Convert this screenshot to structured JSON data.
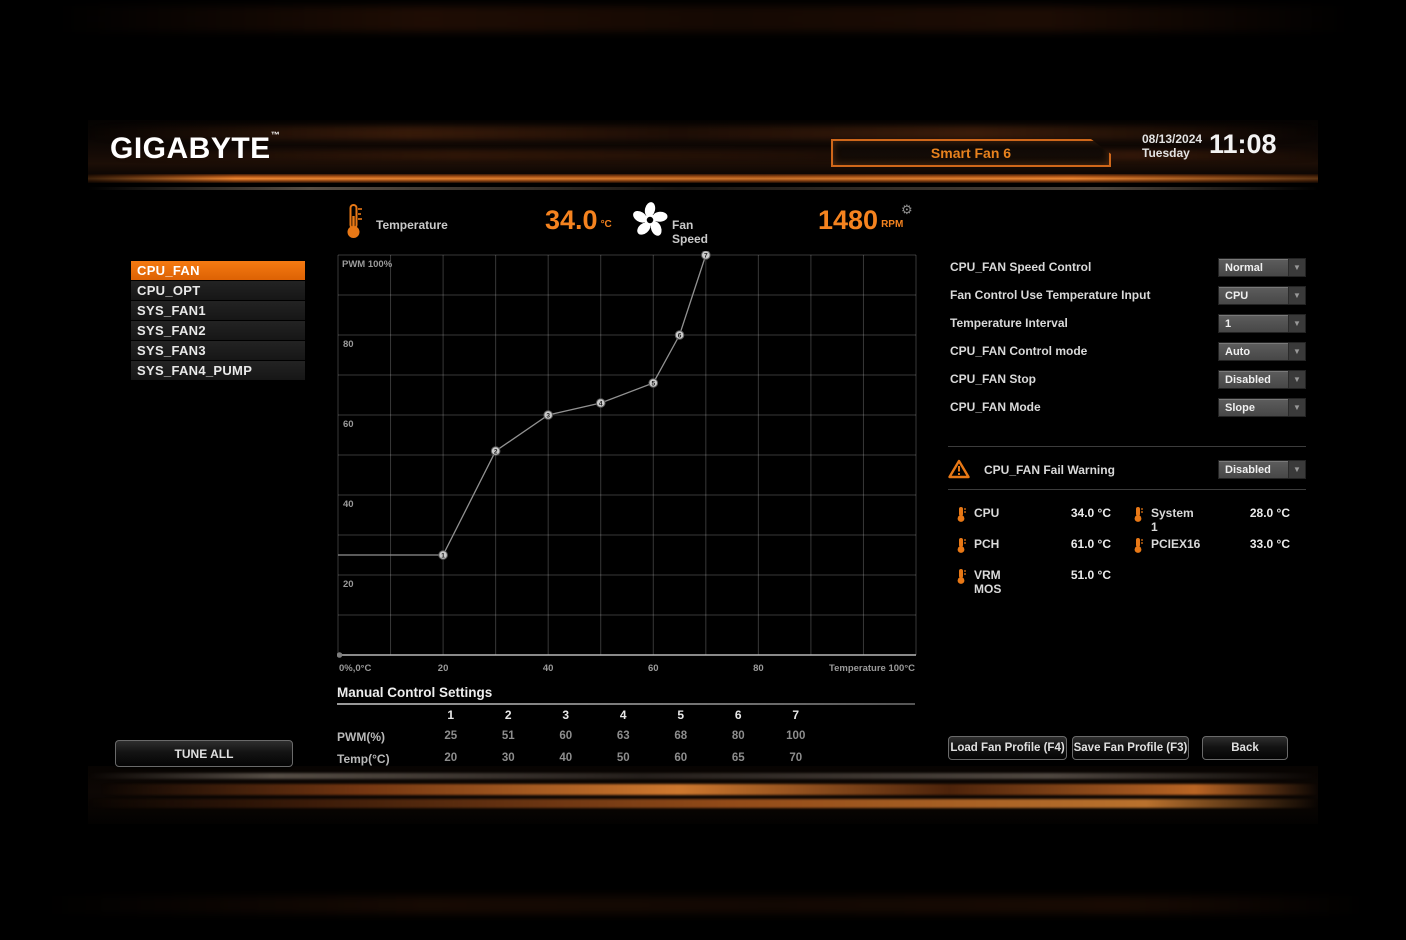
{
  "header": {
    "logo": "GIGABYTE",
    "logo_tm": "™",
    "tab": "Smart Fan 6",
    "date": "08/13/2024",
    "day": "Tuesday",
    "time": "11:08"
  },
  "status_bar": {
    "temperature_label": "Temperature",
    "temperature_value": "34.0",
    "temperature_unit": "°C",
    "fan_speed_label": "Fan Speed",
    "fan_speed_value": "1480",
    "fan_speed_unit": "RPM"
  },
  "fan_list": {
    "items": [
      {
        "label": "CPU_FAN",
        "selected": true
      },
      {
        "label": "CPU_OPT",
        "selected": false
      },
      {
        "label": "SYS_FAN1",
        "selected": false
      },
      {
        "label": "SYS_FAN2",
        "selected": false
      },
      {
        "label": "SYS_FAN3",
        "selected": false
      },
      {
        "label": "SYS_FAN4_PUMP",
        "selected": false
      }
    ]
  },
  "chart_data": {
    "type": "line",
    "title": "CPU_FAN curve",
    "xlabel": "Temperature 100°C",
    "ylabel": "PWM 100%",
    "origin_label": "0%,0°C",
    "x": [
      20,
      30,
      40,
      50,
      60,
      65,
      70
    ],
    "y": [
      25,
      51,
      60,
      63,
      68,
      80,
      100
    ],
    "point_labels": [
      "1",
      "2",
      "3",
      "4",
      "5",
      "6",
      "7"
    ],
    "flat_start_x": 0,
    "xlim": [
      0,
      110
    ],
    "ylim": [
      0,
      100
    ],
    "x_ticks": [
      20,
      40,
      60,
      80
    ],
    "y_ticks": [
      20,
      40,
      60,
      80
    ],
    "grid_step": 10,
    "grid": "on",
    "legend": "none"
  },
  "settings": {
    "rows": [
      {
        "label": "CPU_FAN Speed Control",
        "value": "Normal"
      },
      {
        "label": "Fan Control Use Temperature Input",
        "value": "CPU"
      },
      {
        "label": "Temperature Interval",
        "value": "1"
      },
      {
        "label": "CPU_FAN Control mode",
        "value": "Auto"
      },
      {
        "label": "CPU_FAN Stop",
        "value": "Disabled"
      },
      {
        "label": "CPU_FAN Mode",
        "value": "Slope"
      }
    ],
    "fail_warning": {
      "label": "CPU_FAN Fail Warning",
      "value": "Disabled"
    }
  },
  "temperatures": [
    {
      "label": "CPU",
      "value": "34.0 °C"
    },
    {
      "label": "System 1",
      "value": "28.0 °C"
    },
    {
      "label": "PCH",
      "value": "61.0 °C"
    },
    {
      "label": "PCIEX16",
      "value": "33.0 °C"
    },
    {
      "label": "VRM MOS",
      "value": "51.0 °C"
    }
  ],
  "manual_control": {
    "title": "Manual Control Settings",
    "columns": [
      "1",
      "2",
      "3",
      "4",
      "5",
      "6",
      "7"
    ],
    "rows": [
      {
        "label": "PWM(%)",
        "values": [
          "25",
          "51",
          "60",
          "63",
          "68",
          "80",
          "100"
        ]
      },
      {
        "label": "Temp(°C)",
        "values": [
          "20",
          "30",
          "40",
          "50",
          "60",
          "65",
          "70"
        ]
      }
    ]
  },
  "buttons": {
    "tune_all": "TUNE ALL",
    "load_profile": "Load Fan Profile (F4)",
    "save_profile": "Save Fan Profile (F3)",
    "back": "Back"
  },
  "colors": {
    "accent_orange": "#ee6a04",
    "value_orange": "#f5831f",
    "tab_border": "#cf671a",
    "panel_text": "#d9d9d9"
  }
}
